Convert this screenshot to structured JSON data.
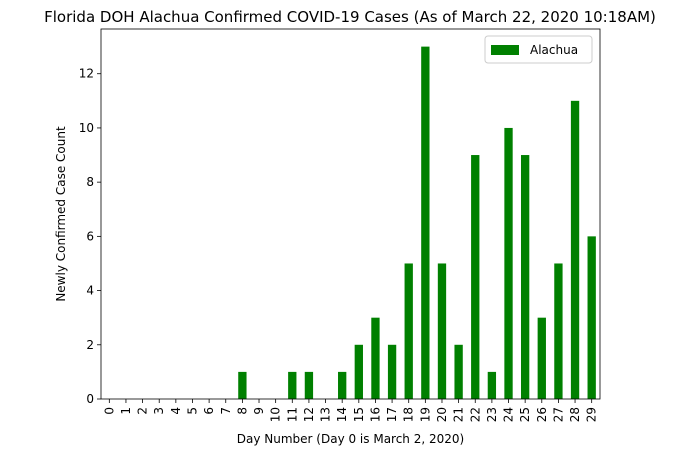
{
  "chart_data": {
    "type": "bar",
    "title": "Florida DOH Alachua Confirmed COVID-19 Cases (As of March 22, 2020 10:18AM)",
    "xlabel": "Day Number (Day 0 is March 2, 2020)",
    "ylabel": "Newly Confirmed Case Count",
    "categories": [
      "0",
      "1",
      "2",
      "3",
      "4",
      "5",
      "6",
      "7",
      "8",
      "9",
      "10",
      "11",
      "12",
      "13",
      "14",
      "15",
      "16",
      "17",
      "18",
      "19",
      "20",
      "21",
      "22",
      "23",
      "24",
      "25",
      "26",
      "27",
      "28",
      "29"
    ],
    "series": [
      {
        "name": "Alachua",
        "color": "#008000",
        "values": [
          0,
          0,
          0,
          0,
          0,
          0,
          0,
          0,
          1,
          0,
          0,
          1,
          1,
          0,
          1,
          2,
          3,
          2,
          5,
          13,
          5,
          2,
          9,
          1,
          10,
          9,
          3,
          5,
          11,
          6
        ]
      }
    ],
    "ylim": [
      0,
      13.65
    ],
    "yticks": [
      0,
      2,
      4,
      6,
      8,
      10,
      12
    ],
    "grid": false,
    "legend_position": "top-right"
  }
}
